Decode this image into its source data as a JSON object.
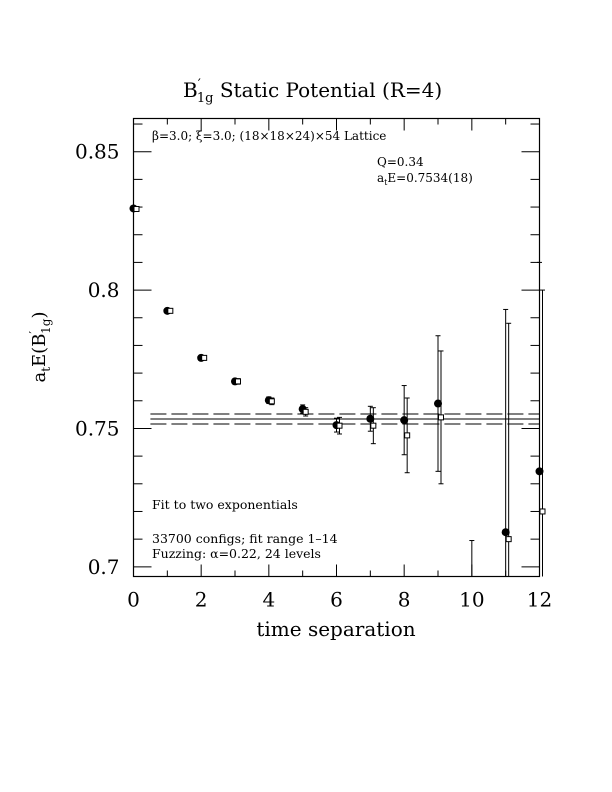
{
  "chart_data": {
    "type": "scatter",
    "title_main": "B",
    "title_prime": "′",
    "title_sub": "1g",
    "title_rest": " Static Potential (R=4)",
    "xlabel": "time separation",
    "ylabel_main": "a",
    "ylabel_t": "t",
    "ylabel_mid": "E(B",
    "ylabel_prime": "′",
    "ylabel_sub": "1g",
    "ylabel_end": ")",
    "xlim": [
      0,
      12
    ],
    "ylim": [
      0.6965,
      0.862
    ],
    "xticks": [
      0,
      2,
      4,
      6,
      8,
      10,
      12
    ],
    "xtick_labels": [
      "0",
      "2",
      "4",
      "6",
      "8",
      "10",
      "12"
    ],
    "yticks": [
      0.7,
      0.75,
      0.8,
      0.85
    ],
    "ytick_labels": [
      "0.7",
      "0.75",
      "0.8",
      "0.85"
    ],
    "annotations": {
      "lattice": "β=3.0; ξ=3.0; (18×18×24)×54 Lattice",
      "q": "Q=0.34",
      "energy_a": "a",
      "energy_t": "t",
      "energy_rest": "E=0.7534(18)",
      "fit": "Fit to two exponentials",
      "configs": "33700 configs; fit range 1–14",
      "fuzzing": "Fuzzing: α=0.22, 24 levels"
    },
    "fit": {
      "value": 0.7534,
      "error": 0.0018,
      "range": [
        0.5,
        12
      ]
    },
    "series": [
      {
        "marker": "filled-circle",
        "points": [
          {
            "x": 0,
            "y": 0.8295,
            "err": 0.0007
          },
          {
            "x": 1,
            "y": 0.7925,
            "err": 0.0007
          },
          {
            "x": 2,
            "y": 0.7755,
            "err": 0.0008
          },
          {
            "x": 3,
            "y": 0.767,
            "err": 0.001
          },
          {
            "x": 4,
            "y": 0.7602,
            "err": 0.0012
          },
          {
            "x": 5,
            "y": 0.757,
            "err": 0.0015
          },
          {
            "x": 6,
            "y": 0.7512,
            "err": 0.0025
          },
          {
            "x": 7,
            "y": 0.7535,
            "err": 0.0045
          },
          {
            "x": 8,
            "y": 0.753,
            "err": 0.0125
          },
          {
            "x": 9,
            "y": 0.759,
            "err": 0.0245
          },
          {
            "x": 10,
            "y": 0.69,
            "err": 0.0195
          },
          {
            "x": 11,
            "y": 0.7125,
            "err": 0.0805
          },
          {
            "x": 12,
            "y": 0.7345,
            "err": 0.0755
          }
        ]
      },
      {
        "marker": "open-square",
        "points": [
          {
            "x": 0,
            "y": 0.8293,
            "err": 0.0007
          },
          {
            "x": 1,
            "y": 0.7925,
            "err": 0.0007
          },
          {
            "x": 2,
            "y": 0.7755,
            "err": 0.0008
          },
          {
            "x": 3,
            "y": 0.767,
            "err": 0.001
          },
          {
            "x": 4,
            "y": 0.7598,
            "err": 0.0012
          },
          {
            "x": 5,
            "y": 0.756,
            "err": 0.0015
          },
          {
            "x": 6,
            "y": 0.751,
            "err": 0.003
          },
          {
            "x": 7,
            "y": 0.751,
            "err": 0.0065
          },
          {
            "x": 8,
            "y": 0.7475,
            "err": 0.0135
          },
          {
            "x": 9,
            "y": 0.754,
            "err": 0.024
          },
          {
            "x": 11,
            "y": 0.71,
            "err": 0.078
          },
          {
            "x": 12,
            "y": 0.72,
            "err": 0.08
          }
        ]
      }
    ]
  }
}
